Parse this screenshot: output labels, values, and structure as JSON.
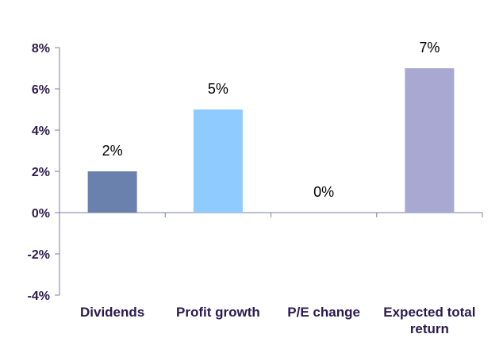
{
  "chart_data": {
    "type": "bar",
    "title": "",
    "xlabel": "",
    "ylabel": "",
    "categories": [
      [
        "Dividends"
      ],
      [
        "Profit growth"
      ],
      [
        "P/E change"
      ],
      [
        "Expected total",
        "return"
      ]
    ],
    "values": [
      2,
      5,
      0,
      7
    ],
    "data_labels": [
      "2%",
      "5%",
      "0%",
      "7%"
    ],
    "colors": [
      "#6a80ad",
      "#8fcbff",
      "#8fcbff",
      "#a8a8d2"
    ],
    "ylim": [
      -4,
      8
    ],
    "yticks": [
      8,
      6,
      4,
      2,
      0,
      -2,
      -4
    ],
    "ytick_labels": [
      "8%",
      "6%",
      "4%",
      "2%",
      "0%",
      "-2%",
      "-4%"
    ],
    "grid": false,
    "legend": "none"
  }
}
